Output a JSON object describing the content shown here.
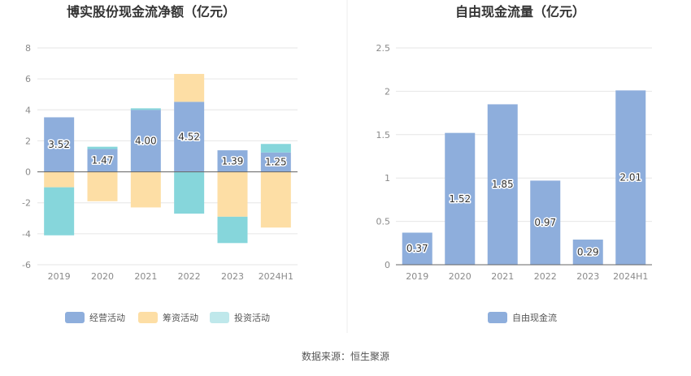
{
  "source_text": "数据来源：恒生聚源",
  "colors": {
    "operating": "#8eaedc",
    "financing": "#fddea5",
    "investing": "#86d6db",
    "investing_legend": "#bfe8eb",
    "fcf": "#8eaedc",
    "grid": "#e6e6e6",
    "axis": "#666666"
  },
  "chart_data": [
    {
      "type": "bar",
      "stacked": true,
      "title": "博实股份现金流净额（亿元）",
      "categories": [
        "2019",
        "2020",
        "2021",
        "2022",
        "2023",
        "2024H1"
      ],
      "ylim": [
        -6,
        8
      ],
      "yticks": [
        "-6",
        "-4",
        "-2",
        "0",
        "2",
        "4",
        "6",
        "8"
      ],
      "grid": true,
      "legend_position": "bottom",
      "series": [
        {
          "name": "经营活动",
          "values": [
            3.52,
            1.47,
            4.0,
            4.52,
            1.39,
            1.25
          ],
          "labels": [
            "3.52",
            "1.47",
            "4.00",
            "4.52",
            "1.39",
            "1.25"
          ]
        },
        {
          "name": "筹资活动",
          "values": [
            -1.0,
            -1.9,
            -2.3,
            1.8,
            -2.9,
            -3.6
          ]
        },
        {
          "name": "投资活动",
          "values": [
            -3.1,
            0.15,
            0.1,
            -2.7,
            -1.7,
            0.55
          ]
        }
      ]
    },
    {
      "type": "bar",
      "title": "自由现金流量（亿元）",
      "categories": [
        "2019",
        "2020",
        "2021",
        "2022",
        "2023",
        "2024H1"
      ],
      "ylim": [
        0,
        2.5
      ],
      "yticks": [
        "0",
        "0.5",
        "1",
        "1.5",
        "2",
        "2.5"
      ],
      "grid": true,
      "legend_position": "bottom",
      "series": [
        {
          "name": "自由现金流",
          "values": [
            0.37,
            1.52,
            1.85,
            0.97,
            0.29,
            2.01
          ],
          "labels": [
            "0.37",
            "1.52",
            "1.85",
            "0.97",
            "0.29",
            "2.01"
          ]
        }
      ]
    }
  ]
}
